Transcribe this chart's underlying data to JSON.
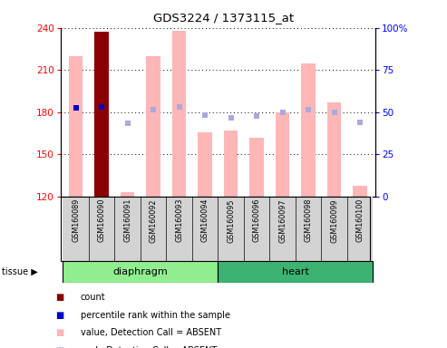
{
  "title": "GDS3224 / 1373115_at",
  "samples": [
    "GSM160089",
    "GSM160090",
    "GSM160091",
    "GSM160092",
    "GSM160093",
    "GSM160094",
    "GSM160095",
    "GSM160096",
    "GSM160097",
    "GSM160098",
    "GSM160099",
    "GSM160100"
  ],
  "ylim_left": [
    120,
    240
  ],
  "ylim_right": [
    0,
    100
  ],
  "yticks_left": [
    120,
    150,
    180,
    210,
    240
  ],
  "yticks_right": [
    0,
    25,
    50,
    75,
    100
  ],
  "bar_values": [
    220,
    237,
    123,
    220,
    238,
    166,
    167,
    162,
    180,
    215,
    187,
    128
  ],
  "rank_values": [
    183,
    184,
    172,
    182,
    184,
    178,
    176,
    177,
    180,
    182,
    180,
    173
  ],
  "percentile_indices": [
    0,
    1
  ],
  "percentile_values": [
    183,
    184
  ],
  "count_bar_index": 1,
  "bar_color_absent": "#FFB6B6",
  "bar_color_count": "#8B0000",
  "rank_color_absent": "#AAAADD",
  "percentile_rank_color": "#0000CC",
  "diaphragm_range": [
    0,
    5
  ],
  "heart_range": [
    6,
    11
  ],
  "tissue_color_diaphragm": "#90EE90",
  "tissue_color_heart": "#3CB371",
  "legend_items": [
    {
      "color": "#8B0000",
      "label": "count"
    },
    {
      "color": "#0000CC",
      "label": "percentile rank within the sample"
    },
    {
      "color": "#FFB6B6",
      "label": "value, Detection Call = ABSENT"
    },
    {
      "color": "#AAAADD",
      "label": "rank, Detection Call = ABSENT"
    }
  ]
}
